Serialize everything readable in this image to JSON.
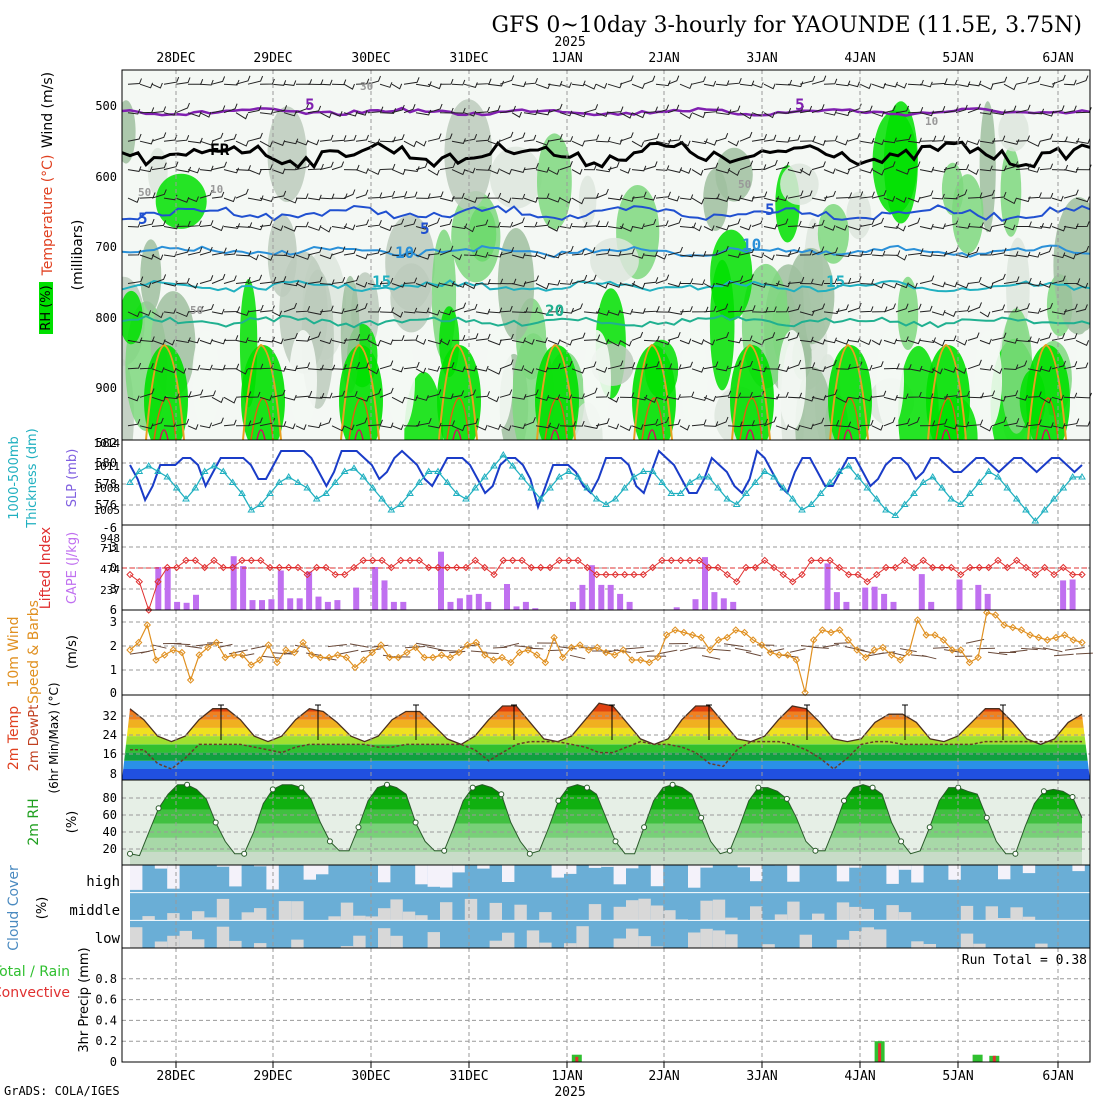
{
  "header": {
    "title": "GFS 0~10day 3-hourly for YAOUNDE (11.5E, 3.75N)",
    "year": "2025",
    "credit": "GrADS: COLA/IGES"
  },
  "colors": {
    "frame": "#000000",
    "grid": "#9a9a9a",
    "rh_green": "#00e000",
    "slp": "#1a3cc8",
    "thickness": "#20b0c0",
    "li": "#e03030",
    "cape": "#c070f0",
    "wind": "#e09020",
    "cloud": "#6aaed6",
    "cloud_bg": "#d8d8d8",
    "rain": "#e03030",
    "total": "#30c030"
  },
  "chart_data": {
    "type": "meteogram",
    "x_labels": [
      "28DEC",
      "29DEC",
      "30DEC",
      "31DEC",
      "1JAN",
      "2JAN",
      "3JAN",
      "4JAN",
      "5JAN",
      "6JAN"
    ],
    "panels": [
      {
        "id": "upper-air",
        "ylabel": "Wind (m/s)",
        "ylabel2": "Temperature (°C)",
        "ylabel3": "RH (%)",
        "ylabel4": "(millibars)",
        "ylim": [
          440,
          970
        ],
        "yticks": [
          "500",
          "600",
          "700",
          "800",
          "900"
        ],
        "contour_labels": [
          {
            "text": "5",
            "c": "#8020b0"
          },
          {
            "text": "5",
            "c": "#8020b0"
          },
          {
            "text": "FR",
            "c": "#000000"
          },
          {
            "text": "5",
            "c": "#2050d0"
          },
          {
            "text": "5",
            "c": "#2050d0"
          },
          {
            "text": "5",
            "c": "#2050d0"
          },
          {
            "text": "10",
            "c": "#2a90d8"
          },
          {
            "text": "10",
            "c": "#2a90d8"
          },
          {
            "text": "15",
            "c": "#20b0c0"
          },
          {
            "text": "15",
            "c": "#20b0c0"
          },
          {
            "text": "20",
            "c": "#20b090"
          },
          {
            "text": "30",
            "c": "#999999"
          },
          {
            "text": "50",
            "c": "#999999"
          },
          {
            "text": "10",
            "c": "#999999"
          },
          {
            "text": "50",
            "c": "#999999"
          },
          {
            "text": "10",
            "c": "#999999"
          },
          {
            "text": "50",
            "c": "#999999"
          }
        ]
      },
      {
        "id": "slp-thickness",
        "ylabel": "1000-500mb",
        "ylabel2": "Thickness (dm)",
        "ylabel3": "SLP (mb)",
        "yticks_left": [
          "582",
          "580",
          "578",
          "576"
        ],
        "yticks_right": [
          "1014",
          "1011",
          "1008",
          "1005"
        ],
        "slp": [
          1011,
          1009,
          1006,
          1008,
          1011,
          1011,
          1011,
          1012,
          1012,
          1011,
          1008,
          1010,
          1012,
          1012,
          1012,
          1012,
          1011,
          1009,
          1009,
          1011,
          1013,
          1013,
          1013,
          1013,
          1012,
          1010,
          1008,
          1010,
          1013,
          1013,
          1013,
          1012,
          1011,
          1009,
          1010,
          1012,
          1013,
          1012,
          1011,
          1009,
          1008,
          1010,
          1012,
          1012,
          1012,
          1011,
          1009,
          1007,
          1008,
          1011,
          1012,
          1012,
          1011,
          1009,
          1005,
          1008,
          1011,
          1011,
          1011,
          1010,
          1008,
          1007,
          1009,
          1012,
          1012,
          1012,
          1011,
          1008,
          1007,
          1010,
          1013,
          1012,
          1011,
          1009,
          1007,
          1007,
          1009,
          1012,
          1011,
          1010,
          1008,
          1007,
          1009,
          1013,
          1012,
          1010,
          1008,
          1007,
          1010,
          1012,
          1012,
          1010,
          1008,
          1008,
          1010,
          1012,
          1012,
          1010,
          1008,
          1009,
          1011,
          1012,
          1012,
          1011,
          1009,
          1010,
          1012,
          1012,
          1011,
          1010,
          1010,
          1011,
          1012,
          1012,
          1011,
          1010,
          1011,
          1012,
          1012,
          1011,
          1010,
          1011,
          1012,
          1012,
          1011,
          1010,
          1011
        ],
        "thickness": [
          578.5,
          579.5,
          580,
          579.5,
          579,
          578,
          577,
          578,
          579.5,
          580,
          579.5,
          578.5,
          577.5,
          576,
          576.5,
          577.5,
          578.5,
          579,
          578.5,
          578,
          577,
          577.5,
          578.5,
          579.5,
          579.8,
          579,
          578,
          577,
          576,
          576.5,
          577.5,
          578.5,
          579.5,
          579.5,
          578.5,
          577.5,
          577,
          578,
          579,
          580,
          581,
          580,
          579,
          578,
          577,
          578,
          579,
          579.5,
          579,
          578,
          577,
          576.5,
          577,
          578,
          579,
          579.5,
          579.5,
          578.5,
          577.5,
          577.5,
          578.5,
          579,
          579,
          578,
          577,
          576.5,
          577.5,
          578.5,
          579.5,
          579,
          578,
          577,
          576,
          576.5,
          577.5,
          578.5,
          579.5,
          580,
          579,
          578,
          577,
          576,
          575.5,
          576.5,
          577.5,
          578.5,
          579,
          578,
          577,
          576.5,
          577.5,
          578.5,
          579.5,
          579,
          578,
          577,
          576,
          575,
          576,
          577,
          578,
          579,
          579
        ],
        "ylim_left": [
          575,
          582
        ],
        "ylim_right": [
          1003,
          1014
        ]
      },
      {
        "id": "li-cape",
        "ylabel": "Lifted Index",
        "ylabel2": "CAPE (J/kg)",
        "yticks_left": [
          "-6",
          "-3",
          "0",
          "3",
          "6"
        ],
        "yticks_right": [
          "948",
          "711",
          "474",
          "237"
        ],
        "ylim_cape": [
          0,
          948
        ],
        "lifted_index": [
          1,
          2,
          6,
          2,
          0,
          0,
          -1,
          -1,
          0,
          -1,
          0,
          0,
          -1,
          -1,
          -1,
          0,
          0,
          0,
          0,
          1,
          0,
          0,
          1,
          1,
          0,
          -1,
          -1,
          -1,
          0,
          -1,
          -1,
          -1,
          0,
          0,
          0,
          0,
          0,
          -1,
          0,
          1,
          -1,
          -1,
          -1,
          0,
          0,
          0,
          -1,
          -1,
          -1,
          0,
          1,
          1,
          1,
          1,
          1,
          1,
          0,
          -1,
          -1,
          -1,
          -1,
          -1,
          0,
          0,
          1,
          2,
          0,
          0,
          -1,
          0,
          1,
          2,
          1,
          -1,
          -1,
          -1,
          0,
          1,
          1,
          2,
          1,
          0,
          0,
          -1,
          0,
          -1,
          0,
          0,
          0,
          1,
          0,
          0,
          0,
          -1,
          0,
          -1,
          0,
          1,
          0,
          1,
          0,
          1,
          1
        ],
        "cape": [
          0,
          0,
          0,
          480,
          480,
          90,
          80,
          170,
          0,
          0,
          0,
          600,
          490,
          110,
          110,
          120,
          440,
          130,
          130,
          430,
          150,
          90,
          110,
          0,
          250,
          0,
          480,
          330,
          90,
          90,
          0,
          0,
          0,
          650,
          90,
          130,
          170,
          180,
          90,
          0,
          290,
          40,
          90,
          20,
          0,
          0,
          0,
          90,
          280,
          500,
          280,
          280,
          180,
          90,
          0,
          0,
          0,
          0,
          30,
          0,
          120,
          590,
          200,
          130,
          90,
          0,
          0,
          0,
          0,
          0,
          0,
          0,
          0,
          0,
          520,
          200,
          90,
          0,
          250,
          260,
          180,
          90,
          0,
          0,
          400,
          90,
          0,
          0,
          340,
          0,
          280,
          180,
          0,
          0,
          0,
          0,
          0,
          0,
          0,
          330,
          340,
          0
        ],
        "hline": 474
      },
      {
        "id": "wind10m",
        "ylabel": "10m Wind",
        "ylabel2": "Speed & Barbs",
        "ylabel3": "(m/s)",
        "yticks": [
          "3",
          "2",
          "1",
          "0"
        ],
        "ylim": [
          0,
          3.4
        ],
        "speed": [
          1.8,
          2.1,
          2.8,
          1.4,
          1.6,
          1.8,
          1.7,
          0.6,
          1.6,
          1.9,
          2.1,
          1.5,
          1.6,
          1.6,
          1.2,
          1.4,
          2.0,
          1.3,
          1.8,
          1.7,
          2.1,
          1.6,
          1.5,
          1.5,
          1.6,
          1.5,
          1.1,
          1.4,
          1.7,
          2.0,
          1.5,
          1.5,
          1.7,
          1.9,
          1.5,
          1.5,
          1.6,
          1.5,
          1.7,
          2.0,
          2.1,
          1.6,
          1.4,
          1.5,
          1.3,
          1.7,
          1.8,
          1.6,
          1.3,
          2.3,
          1.5,
          1.9,
          2.0,
          1.8,
          1.9,
          1.7,
          1.6,
          1.8,
          1.4,
          1.4,
          1.3,
          1.5,
          2.4,
          2.6,
          2.5,
          2.4,
          2.3,
          1.8,
          2.2,
          2.3,
          2.6,
          2.5,
          2.2,
          2.0,
          1.7,
          1.6,
          1.6,
          1.4,
          0.1,
          2.2,
          2.6,
          2.5,
          2.6,
          2.2,
          1.8,
          1.5,
          1.8,
          1.9,
          1.6,
          1.4,
          1.7,
          3.0,
          2.4,
          2.4,
          2.2,
          1.8,
          1.8,
          1.3,
          1.5,
          3.3,
          3.2,
          2.8,
          2.7,
          2.6,
          2.4,
          2.3,
          2.2,
          2.3,
          2.4,
          2.2,
          2.1
        ]
      },
      {
        "id": "temp2m",
        "ylabel": "2m Temp",
        "ylabel2": "2m DewPt",
        "ylabel3": "(6hr Min/Max) (°C)",
        "yticks": [
          "32",
          "24",
          "16",
          "8"
        ],
        "ylim": [
          6,
          37
        ],
        "temp_max": [
          32,
          28,
          22,
          20,
          22,
          28,
          32,
          32,
          28,
          22,
          20,
          22,
          28,
          32,
          31,
          27,
          22,
          20,
          22,
          28,
          31,
          31,
          26,
          21,
          19,
          22,
          28,
          33,
          33,
          27,
          21,
          20,
          22,
          28,
          34,
          33,
          27,
          21,
          19,
          21,
          28,
          33,
          33,
          27,
          21,
          20,
          22,
          28,
          33,
          32,
          27,
          21,
          20,
          21,
          27,
          30,
          30,
          27,
          21,
          20,
          22,
          27,
          32,
          32,
          27,
          21,
          19,
          21,
          27,
          30
        ],
        "dewpoint": [
          17,
          17,
          12,
          10,
          14,
          19,
          19,
          19,
          19,
          18,
          17,
          16,
          18,
          19,
          19,
          19,
          19,
          19,
          18,
          18,
          19,
          19,
          19,
          19,
          19,
          17,
          13,
          16,
          19,
          20,
          20,
          20,
          19,
          18,
          16,
          16,
          18,
          20,
          19,
          19,
          18,
          16,
          12,
          11,
          17,
          20,
          20,
          20,
          19,
          17,
          14,
          10,
          14,
          19,
          20,
          20,
          19,
          19,
          19,
          19,
          19,
          19,
          20,
          20,
          20,
          20,
          20,
          20,
          20,
          20
        ]
      },
      {
        "id": "rh2m",
        "ylabel": "2m RH",
        "ylabel2": "(%)",
        "yticks": [
          "80",
          "60",
          "40",
          "20"
        ],
        "ylim": [
          10,
          100
        ],
        "rh": [
          22,
          20,
          45,
          70,
          85,
          95,
          95,
          90,
          80,
          55,
          35,
          22,
          22,
          45,
          75,
          90,
          95,
          95,
          92,
          80,
          55,
          35,
          25,
          25,
          50,
          78,
          92,
          95,
          92,
          85,
          55,
          35,
          25,
          25,
          50,
          78,
          92,
          95,
          92,
          85,
          55,
          35,
          22,
          25,
          50,
          78,
          92,
          95,
          92,
          85,
          60,
          35,
          22,
          22,
          50,
          78,
          92,
          95,
          92,
          85,
          60,
          35,
          22,
          25,
          50,
          78,
          92,
          92,
          88,
          80,
          60,
          35,
          25,
          25,
          50,
          78,
          92,
          95,
          92,
          85,
          55,
          35,
          22,
          25,
          50,
          78,
          92,
          92,
          88,
          85,
          60,
          35,
          22,
          22,
          50,
          75,
          88,
          90,
          88,
          82,
          60
        ]
      },
      {
        "id": "cloud",
        "ylabel": "Cloud Cover",
        "ylabel2": "(%)",
        "levels": [
          "high",
          "middle",
          "low"
        ]
      },
      {
        "id": "precip",
        "ylabel": "Total / Rain",
        "ylabel2": "Convective",
        "ylabel3": "3hr Precip (mm)",
        "yticks": [
          "0.8",
          "0.6",
          "0.4",
          "0.2",
          "0"
        ],
        "ylim": [
          0,
          1.0
        ],
        "run_total": "Run Total = 0.38",
        "bars": [
          {
            "x": 4.1,
            "total": 0.07,
            "conv": 0.05
          },
          {
            "x": 7.2,
            "total": 0.2,
            "conv": 0.18
          },
          {
            "x": 8.2,
            "total": 0.07,
            "conv": 0.0
          },
          {
            "x": 8.37,
            "total": 0.06,
            "conv": 0.06
          }
        ]
      }
    ]
  }
}
